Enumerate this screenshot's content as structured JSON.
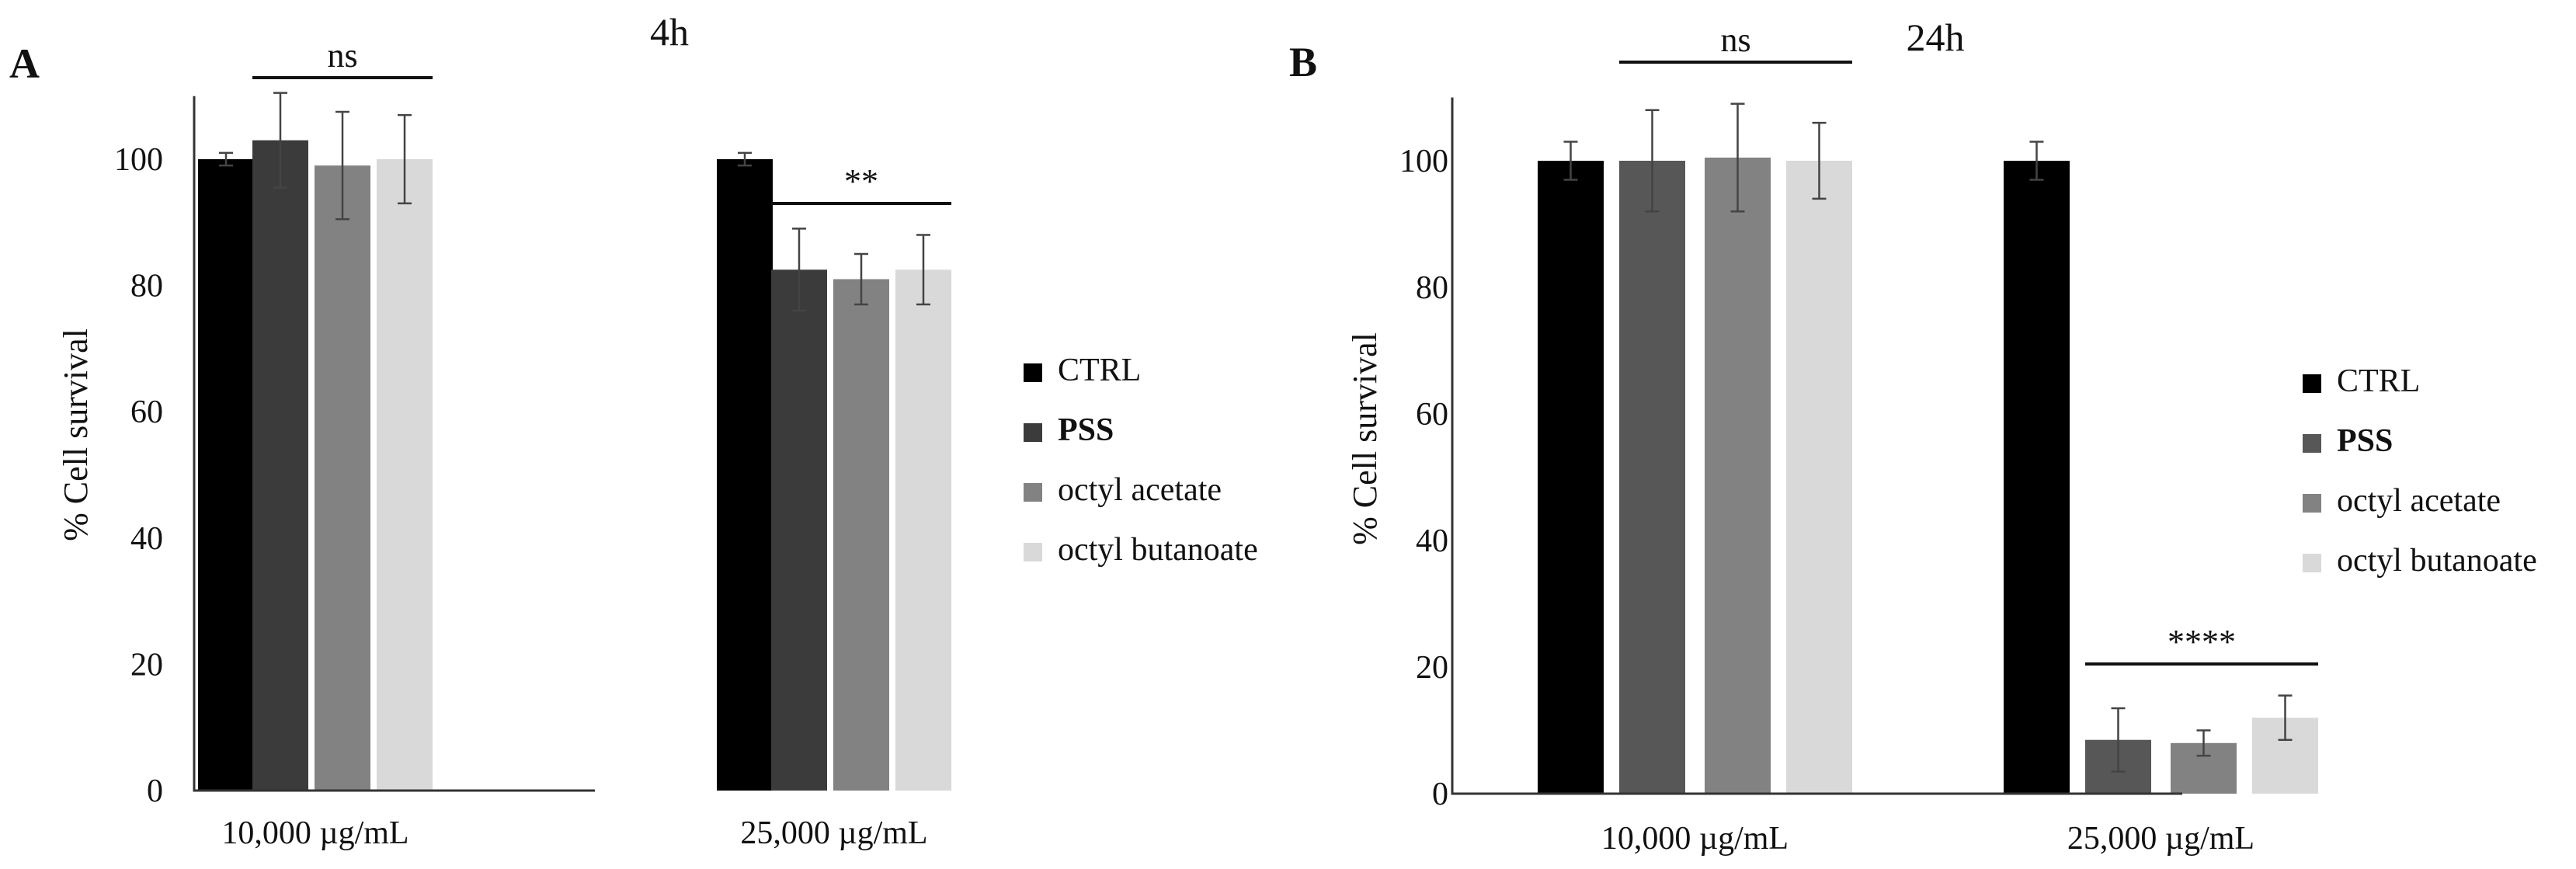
{
  "colors": {
    "CTRL": "#000000",
    "PSS_A": "#3b3b3b",
    "PSS_B": "#575757",
    "octyl acetate": "#828282",
    "octyl butanoate": "#d9d9d9"
  },
  "chart_data": [
    {
      "type": "bar",
      "panel": "A",
      "title": "4h",
      "xlabel": "",
      "ylabel": "% Cell survival",
      "ylim": [
        0,
        110
      ],
      "yticks": [
        0,
        20,
        40,
        60,
        80,
        100
      ],
      "categories": [
        "10,000 µg/mL",
        "25,000 µg/mL"
      ],
      "series": [
        {
          "name": "CTRL",
          "bold": false,
          "values": [
            100,
            100
          ],
          "errors": [
            1,
            1
          ]
        },
        {
          "name": "PSS",
          "bold": true,
          "values": [
            103,
            82.5
          ],
          "errors": [
            7.5,
            6.5
          ]
        },
        {
          "name": "octyl acetate",
          "bold": false,
          "values": [
            99,
            81
          ],
          "errors": [
            8.5,
            4
          ]
        },
        {
          "name": "octyl butanoate",
          "bold": false,
          "values": [
            100,
            82.5
          ],
          "errors": [
            7,
            5.5
          ]
        }
      ],
      "annotations": [
        {
          "text": "ns",
          "category": 0
        },
        {
          "text": "**",
          "category": 1
        }
      ],
      "legend_position": "right"
    },
    {
      "type": "bar",
      "panel": "B",
      "title": "24h",
      "xlabel": "",
      "ylabel": "% Cell survival",
      "ylim": [
        0,
        110
      ],
      "yticks": [
        0,
        20,
        40,
        60,
        80,
        100
      ],
      "categories": [
        "10,000 µg/mL",
        "25,000 µg/mL"
      ],
      "series": [
        {
          "name": "CTRL",
          "bold": false,
          "values": [
            100,
            100
          ],
          "errors": [
            3,
            3
          ]
        },
        {
          "name": "PSS",
          "bold": true,
          "values": [
            100,
            8.5
          ],
          "errors": [
            8,
            5
          ]
        },
        {
          "name": "octyl acetate",
          "bold": false,
          "values": [
            100.5,
            8
          ],
          "errors": [
            8.5,
            2
          ]
        },
        {
          "name": "octyl butanoate",
          "bold": false,
          "values": [
            100,
            12
          ],
          "errors": [
            6,
            3.5
          ]
        }
      ],
      "annotations": [
        {
          "text": "ns",
          "category": 0
        },
        {
          "text": "****",
          "category": 1
        }
      ],
      "legend_position": "right"
    }
  ]
}
